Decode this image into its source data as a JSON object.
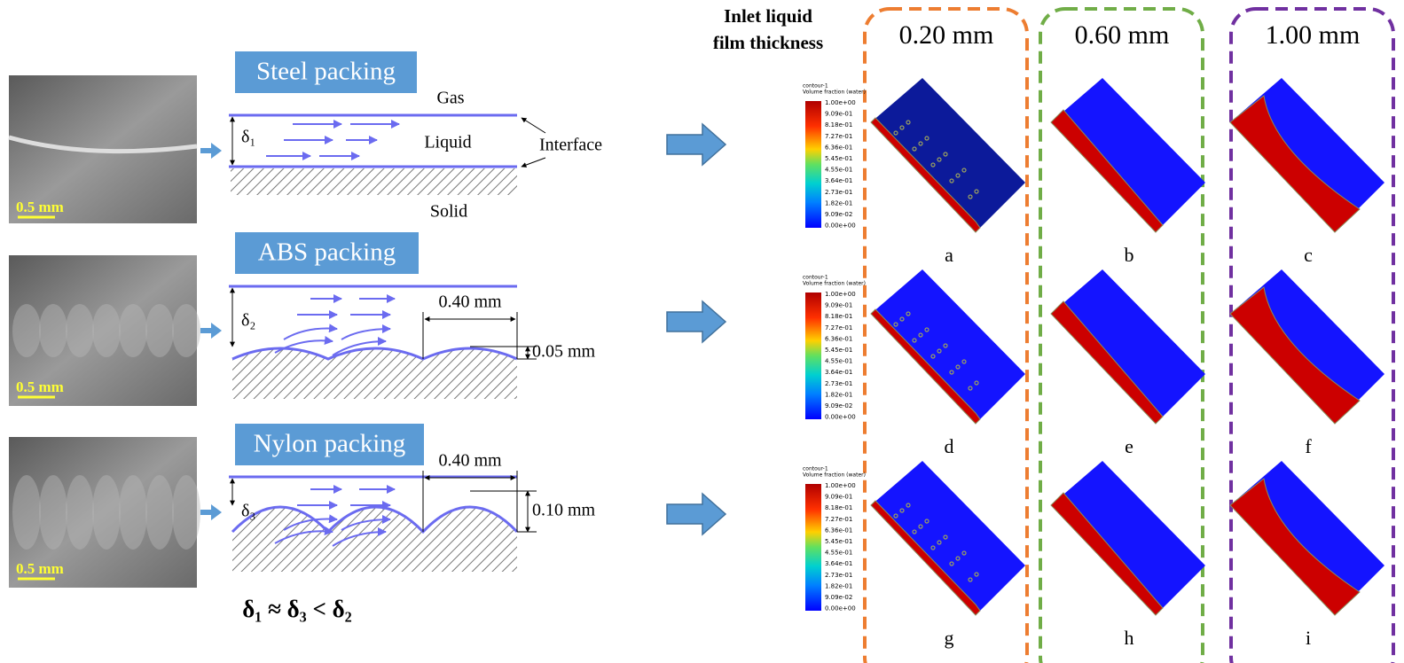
{
  "left": {
    "rows": [
      {
        "photo_scale": "0.5 mm",
        "packing": "Steel packing",
        "thickness": "δ₁"
      },
      {
        "photo_scale": "0.5 mm",
        "packing": "ABS packing",
        "thickness": "δ₂",
        "pitch": "0.40 mm",
        "height": "0.05 mm"
      },
      {
        "photo_scale": "0.5 mm",
        "packing": "Nylon packing",
        "thickness": "δ₃",
        "pitch": "0.40 mm",
        "height": "0.10 mm"
      }
    ],
    "labels": {
      "gas": "Gas",
      "liquid": "Liquid",
      "interface": "Interface",
      "solid": "Solid"
    },
    "relation": "δ₁ ≈ δ₃ < δ₂"
  },
  "right": {
    "header": [
      "Inlet liquid",
      "film thickness"
    ],
    "columns": [
      "0.20 mm",
      "0.60 mm",
      "1.00 mm"
    ],
    "panels": [
      [
        "a",
        "b",
        "c"
      ],
      [
        "d",
        "e",
        "f"
      ],
      [
        "g",
        "h",
        "i"
      ]
    ],
    "legend": {
      "title": "contour-1",
      "subtitle": "Volume fraction (water)",
      "ticks": [
        "1.00e+00",
        "9.09e-01",
        "8.18e-01",
        "7.27e-01",
        "6.36e-01",
        "5.45e-01",
        "4.55e-01",
        "3.64e-01",
        "2.73e-01",
        "1.82e-01",
        "9.09e-02",
        "0.00e+00"
      ]
    }
  }
}
